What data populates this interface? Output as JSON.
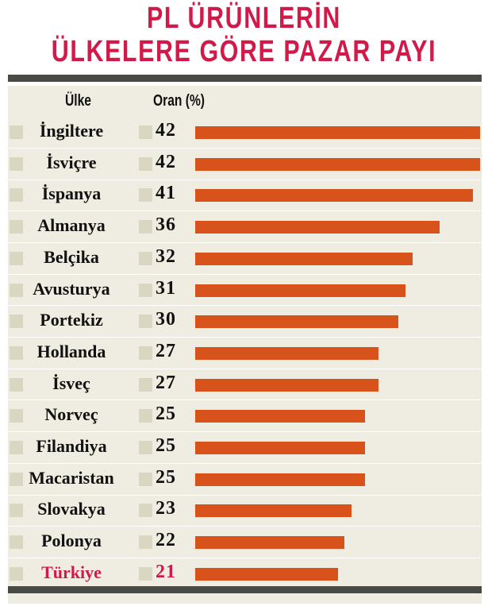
{
  "title_line1": "PL ÜRÜNLERİN",
  "title_line2": "ÜLKELERE GÖRE PAZAR PAYI",
  "header": {
    "country": "Ülke",
    "value": "Oran (%)"
  },
  "colors": {
    "bar": "#d8531b",
    "highlight": "#d11a4a",
    "title": "#d11a4a",
    "row_bg": "#efede1"
  },
  "chart_data": {
    "type": "bar",
    "orientation": "horizontal",
    "title": "PL ÜRÜNLERİN ÜLKELERE GÖRE PAZAR PAYI",
    "xlabel": "Oran (%)",
    "ylabel": "Ülke",
    "xlim": [
      0,
      42
    ],
    "grid": false,
    "categories": [
      "İngiltere",
      "İsviçre",
      "İspanya",
      "Almanya",
      "Belçika",
      "Avusturya",
      "Portekiz",
      "Hollanda",
      "İsveç",
      "Norveç",
      "Filandiya",
      "Macaristan",
      "Slovakya",
      "Polonya",
      "Türkiye"
    ],
    "values": [
      42,
      42,
      41,
      36,
      32,
      31,
      30,
      27,
      27,
      25,
      25,
      25,
      23,
      22,
      21
    ],
    "highlighted_category": "Türkiye"
  }
}
